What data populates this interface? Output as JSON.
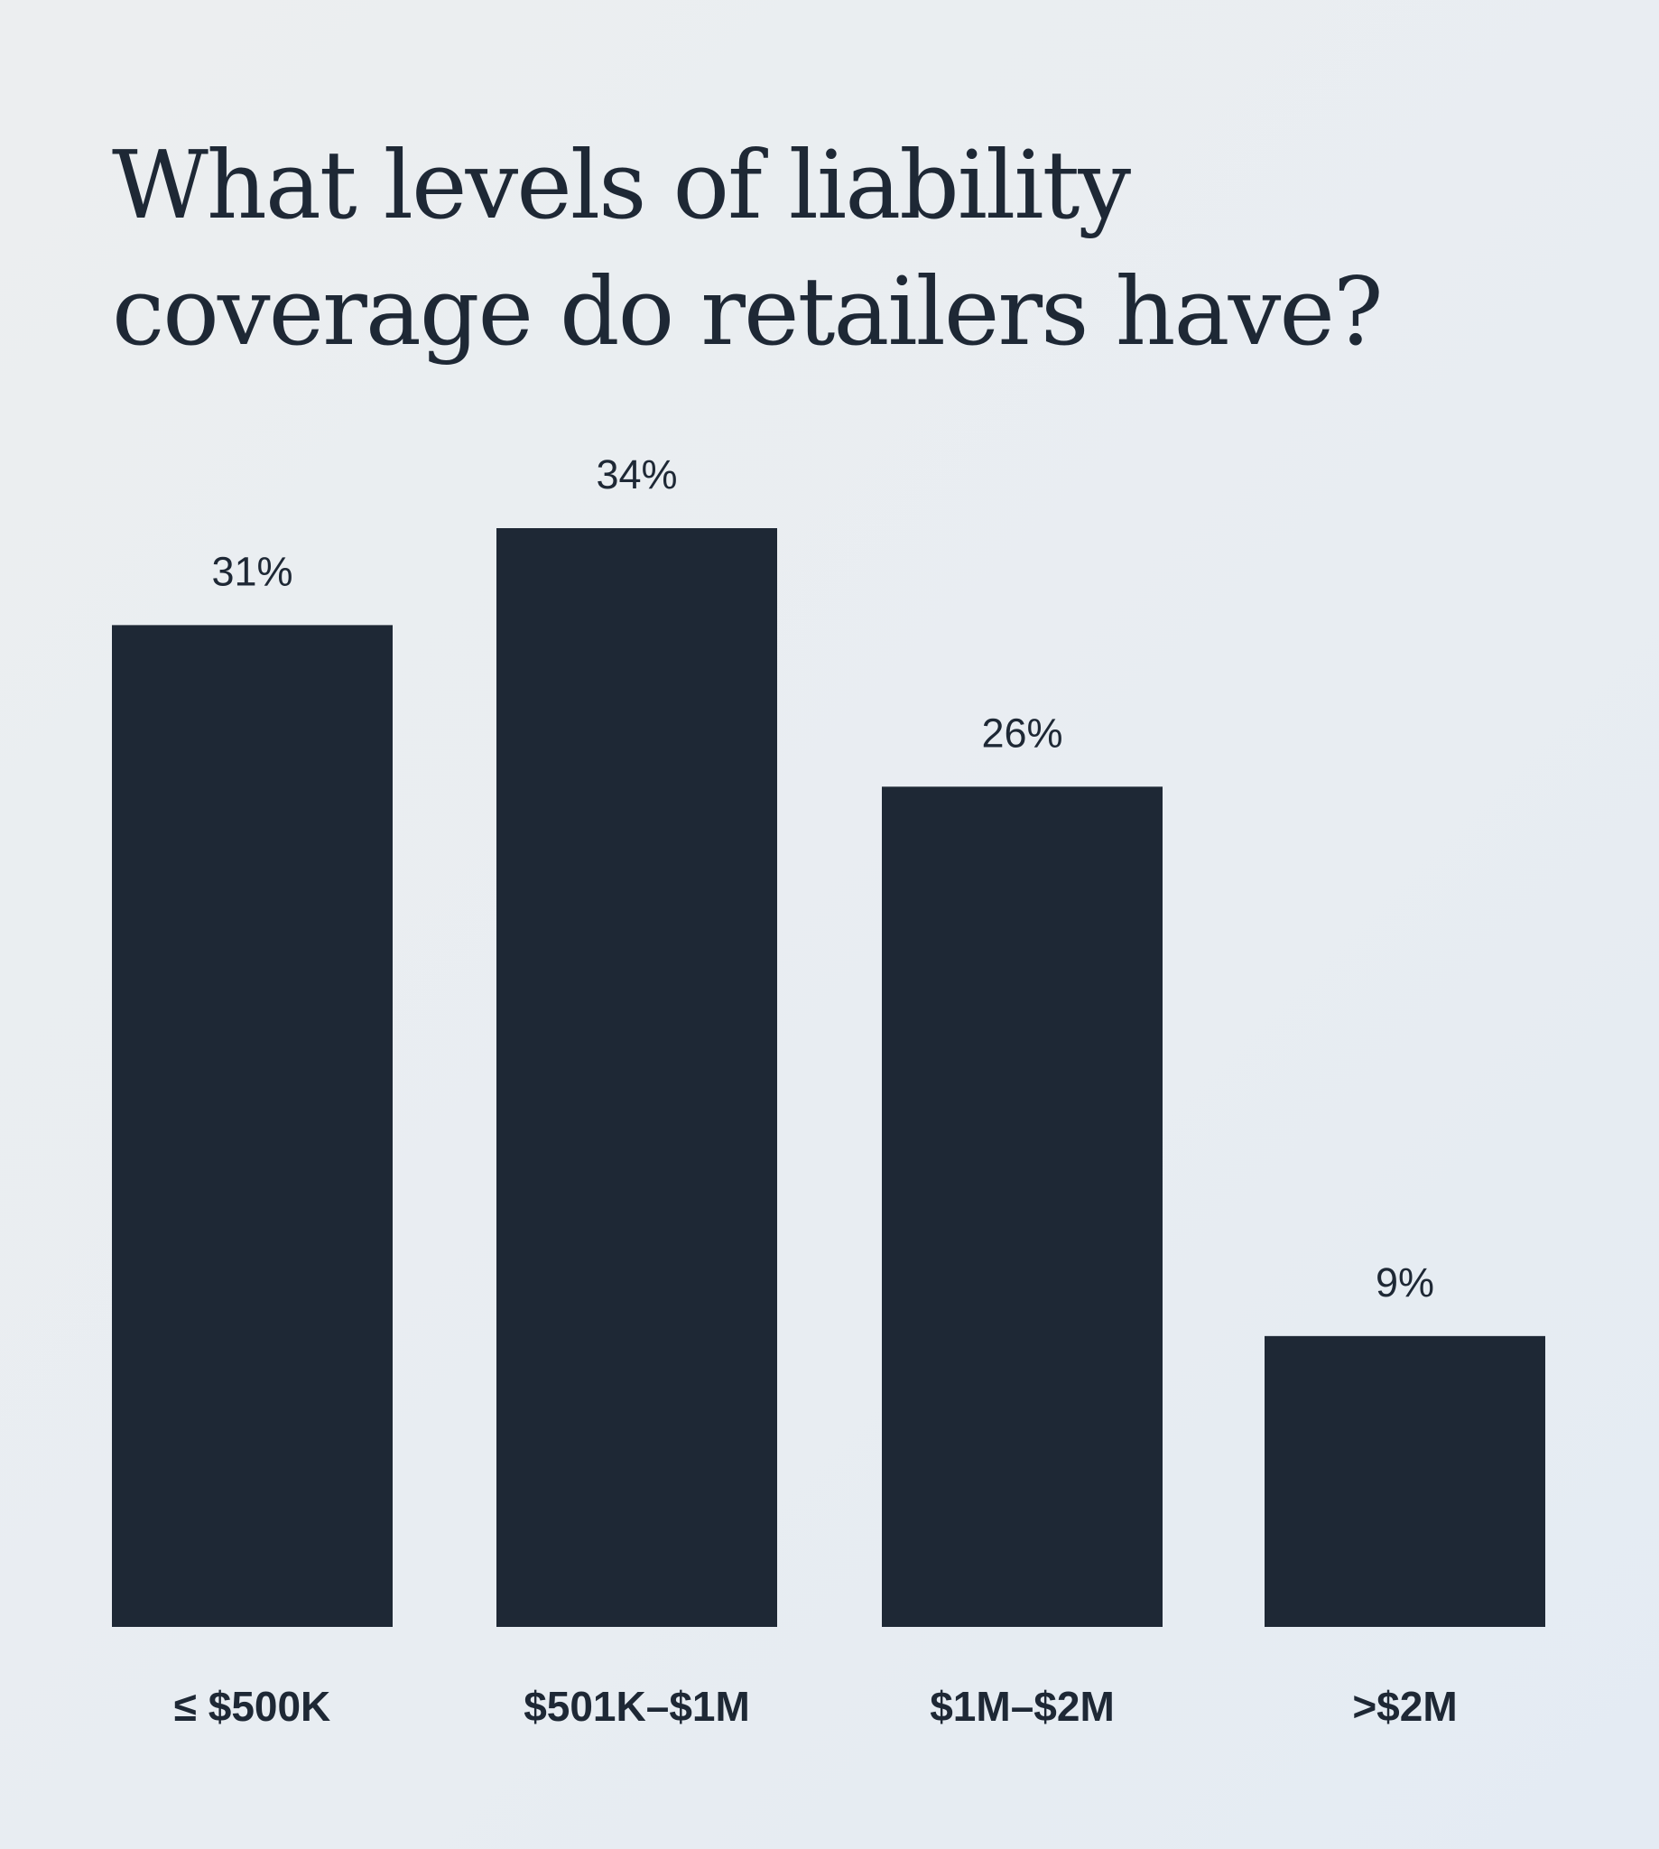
{
  "chart_data": {
    "type": "bar",
    "title": "What levels of liability coverage do retailers have?",
    "categories": [
      "≤ $500K",
      "$501K–$1M",
      "$1M–$2M",
      ">$2M"
    ],
    "values": [
      31,
      34,
      26,
      9
    ],
    "value_labels": [
      "31%",
      "34%",
      "26%",
      "9%"
    ],
    "xlabel": "",
    "ylabel": "",
    "ylim": [
      0,
      34
    ],
    "grid": false,
    "bar_color": "#1e2835"
  }
}
